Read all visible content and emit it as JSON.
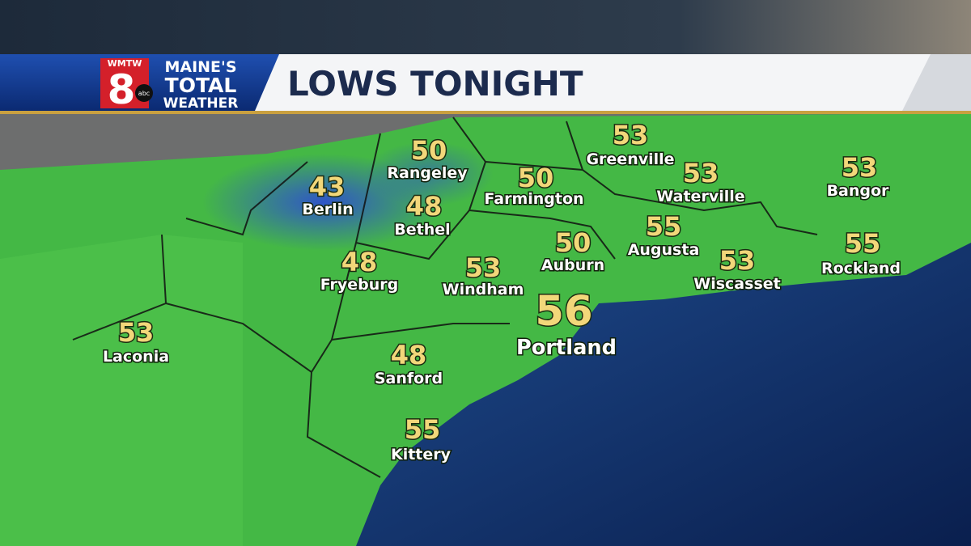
{
  "header": {
    "station": "WMTW",
    "channel": "8",
    "network": "abc",
    "brand": [
      "MAINE'S",
      "TOTAL",
      "WEATHER"
    ],
    "title": "LOWS TONIGHT"
  },
  "cities": [
    {
      "name": "Greenville",
      "low": 53
    },
    {
      "name": "Rangeley",
      "low": 50
    },
    {
      "name": "Farmington",
      "low": 50
    },
    {
      "name": "Waterville",
      "low": 53
    },
    {
      "name": "Bangor",
      "low": 53
    },
    {
      "name": "Berlin",
      "low": 43
    },
    {
      "name": "Bethel",
      "low": 48
    },
    {
      "name": "Augusta",
      "low": 55
    },
    {
      "name": "Auburn",
      "low": 50
    },
    {
      "name": "Rockland",
      "low": 55
    },
    {
      "name": "Fryeburg",
      "low": 48
    },
    {
      "name": "Windham",
      "low": 53
    },
    {
      "name": "Wiscasset",
      "low": 53
    },
    {
      "name": "Portland",
      "low": 56
    },
    {
      "name": "Laconia",
      "low": 53
    },
    {
      "name": "Sanford",
      "low": 48
    },
    {
      "name": "Kittery",
      "low": 55
    }
  ]
}
